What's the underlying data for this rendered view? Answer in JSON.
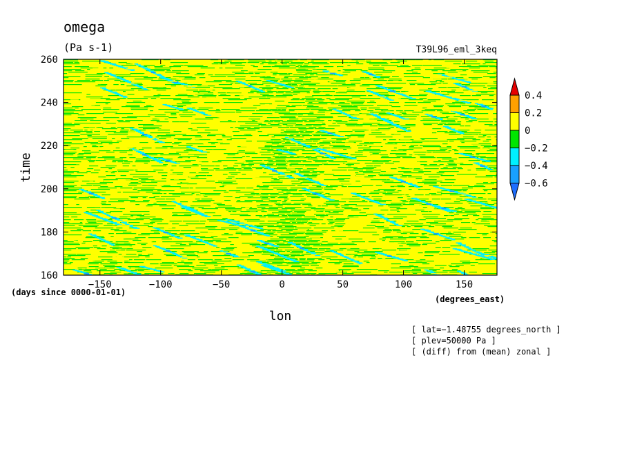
{
  "chart_data": {
    "type": "heatmap",
    "title": "omega",
    "units": "(Pa s-1)",
    "run_label": "T39L96_eml_3keq",
    "xlabel": "lon",
    "ylabel": "time",
    "x_units": "(degrees_east)",
    "y_units": "(days since 0000-01-01)",
    "xlim": [
      -180,
      177
    ],
    "ylim": [
      160,
      260
    ],
    "x_ticks": [
      -150,
      -100,
      -50,
      0,
      50,
      100,
      150
    ],
    "y_ticks": [
      160,
      180,
      200,
      220,
      240,
      260
    ],
    "x_tick_labels": [
      "−150",
      "−100",
      "−50",
      "0",
      "50",
      "100",
      "150"
    ],
    "y_tick_labels": [
      "160",
      "180",
      "200",
      "220",
      "240",
      "260"
    ],
    "colorbar": {
      "levels": [
        -0.6,
        -0.4,
        -0.2,
        0,
        0.2,
        0.4
      ],
      "labels": [
        "−0.6",
        "−0.4",
        "−0.2",
        "0",
        "0.2",
        "0.4"
      ],
      "colors": [
        "#1e6eff",
        "#18a0ff",
        "#00f0ff",
        "#00e600",
        "#ffff00",
        "#ffa000",
        "#e60000"
      ]
    },
    "notes": [
      "[ lat=−1.48755 degrees_north ]",
      "[ plev=50000 Pa ]",
      "[ (diff) from (mean) zonal ]"
    ],
    "grid": false
  }
}
